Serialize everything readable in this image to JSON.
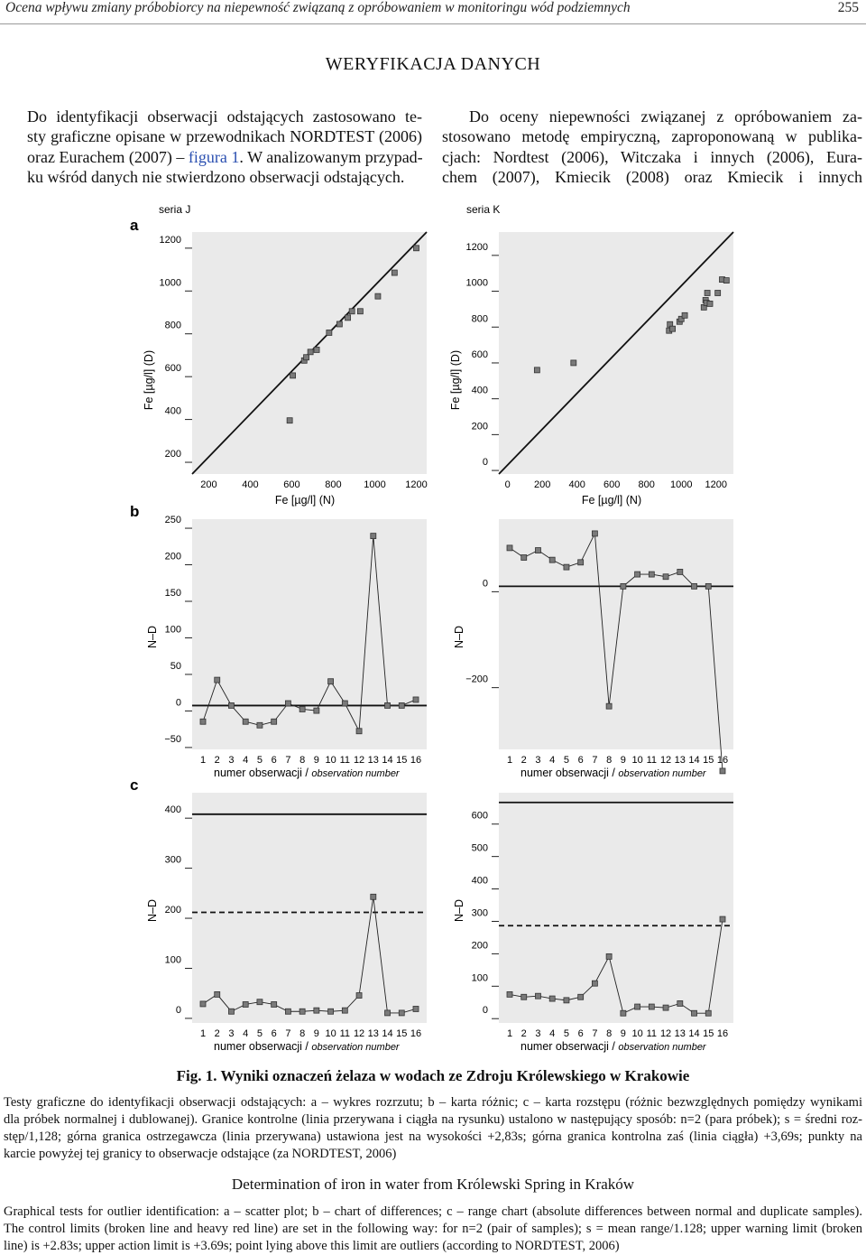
{
  "header": {
    "running_title": "Ocena wpływu zmiany próbobiorcy na niepewność związaną z opróbowaniem w monitoringu wód podziemnych",
    "page_number": "255"
  },
  "section_title": "WERYFIKACJA DANYCH",
  "left_para": {
    "lines": [
      "Do identyfikacji obserwacji odstających zastosowano te-",
      "sty graficzne opisane w przewodnikach NORDTEST (2006)",
      "oraz Eurachem (2007) – ",
      ". W analizowanym przypad-",
      "ku wśród danych nie stwierdzono obserwacji odstających."
    ],
    "link": "figura 1"
  },
  "right_para": {
    "lines": [
      "Do oceny niepewności związanej z opróbowaniem za-",
      "stosowano metodę empiryczną, zaproponowaną w publika-",
      "cjach: Nordtest (2006), Witczaka i innych (2006), Eura-",
      "chem (2007), Kmiecik (2008) oraz Kmiecik i innych"
    ]
  },
  "figure": {
    "panel_letters": [
      "a",
      "b",
      "c"
    ],
    "series_titles": [
      "seria J",
      "seria K"
    ],
    "scatter_xlabel": "Fe [µg/l] (N)",
    "scatter_ylabel": "Fe [µg/l] (D)",
    "obs_xlabel_pl": "numer obserwacji / ",
    "obs_xlabel_en": "observation number",
    "nd_ylabel": "N–D"
  },
  "chart_data": [
    {
      "id": "a-J",
      "type": "scatter",
      "title": "seria J",
      "xlabel": "Fe [µg/l] (N)",
      "ylabel": "Fe [µg/l] (D)",
      "xlim": [
        120,
        1250
      ],
      "ylim": [
        120,
        1250
      ],
      "x_ticks": [
        200,
        400,
        600,
        800,
        1000,
        1200
      ],
      "y_ticks": [
        200,
        400,
        600,
        800,
        1000,
        1200
      ],
      "reference_line": "y = x",
      "points": [
        [
          590,
          370
        ],
        [
          605,
          580
        ],
        [
          660,
          650
        ],
        [
          670,
          665
        ],
        [
          690,
          690
        ],
        [
          720,
          700
        ],
        [
          780,
          780
        ],
        [
          830,
          820
        ],
        [
          870,
          850
        ],
        [
          890,
          880
        ],
        [
          930,
          880
        ],
        [
          1015,
          950
        ],
        [
          1095,
          1060
        ],
        [
          1200,
          1175
        ]
      ]
    },
    {
      "id": "a-K",
      "type": "scatter",
      "title": "seria K",
      "xlabel": "Fe [µg/l] (N)",
      "ylabel": "Fe [µg/l] (D)",
      "xlim": [
        -50,
        1300
      ],
      "ylim": [
        -50,
        1300
      ],
      "x_ticks": [
        0,
        200,
        400,
        600,
        800,
        1000,
        1200
      ],
      "y_ticks": [
        0,
        200,
        400,
        600,
        800,
        1000,
        1200
      ],
      "reference_line": "y = x",
      "points": [
        [
          170,
          530
        ],
        [
          380,
          570
        ],
        [
          930,
          750
        ],
        [
          935,
          785
        ],
        [
          950,
          760
        ],
        [
          990,
          800
        ],
        [
          1000,
          815
        ],
        [
          1020,
          835
        ],
        [
          1130,
          880
        ],
        [
          1140,
          920
        ],
        [
          1150,
          960
        ],
        [
          1145,
          905
        ],
        [
          1165,
          900
        ],
        [
          1210,
          960
        ],
        [
          1235,
          1035
        ],
        [
          1260,
          1030
        ]
      ]
    },
    {
      "id": "b-J",
      "type": "line",
      "ylabel": "N–D",
      "xlabel": "numer obserwacji / observation number",
      "x": [
        1,
        2,
        3,
        4,
        5,
        6,
        7,
        8,
        9,
        10,
        11,
        12,
        13,
        14,
        15,
        16
      ],
      "ylim": [
        -60,
        255
      ],
      "y_ticks": [
        -50,
        0,
        50,
        100,
        150,
        200,
        250
      ],
      "values": [
        -22,
        35,
        0,
        -22,
        -27,
        -22,
        3,
        -5,
        -7,
        33,
        3,
        -35,
        232,
        0,
        0,
        8
      ],
      "center_line": 0
    },
    {
      "id": "b-K",
      "type": "line",
      "ylabel": "N–D",
      "xlabel": "numer obserwacji / observation number",
      "x": [
        1,
        2,
        3,
        4,
        5,
        6,
        7,
        8,
        9,
        10,
        11,
        12,
        13,
        14,
        15,
        16
      ],
      "ylim": [
        -340,
        140
      ],
      "y_ticks": [
        -200,
        0
      ],
      "values": [
        80,
        60,
        75,
        55,
        40,
        50,
        110,
        -250,
        0,
        25,
        25,
        20,
        30,
        0,
        0,
        -385
      ],
      "center_line": 0
    },
    {
      "id": "c-J",
      "type": "line",
      "ylabel": "N–D",
      "xlabel": "numer obserwacji / observation number",
      "x": [
        1,
        2,
        3,
        4,
        5,
        6,
        7,
        8,
        9,
        10,
        11,
        12,
        13,
        14,
        15,
        16
      ],
      "ylim": [
        -20,
        440
      ],
      "y_ticks": [
        0,
        100,
        200,
        300,
        400
      ],
      "values": [
        18,
        37,
        3,
        17,
        22,
        17,
        3,
        3,
        5,
        3,
        5,
        35,
        232,
        0,
        0,
        8
      ],
      "warning_limit": 201,
      "action_limit": 397
    },
    {
      "id": "c-K",
      "type": "line",
      "ylabel": "N–D",
      "xlabel": "numer obserwacji / observation number",
      "x": [
        1,
        2,
        3,
        4,
        5,
        6,
        7,
        8,
        9,
        10,
        11,
        12,
        13,
        14,
        15,
        16
      ],
      "ylim": [
        -30,
        680
      ],
      "y_ticks": [
        0,
        100,
        200,
        300,
        400,
        500,
        600
      ],
      "values": [
        58,
        50,
        53,
        45,
        40,
        50,
        92,
        175,
        0,
        20,
        20,
        17,
        30,
        0,
        0,
        290
      ],
      "warning_limit": 270,
      "action_limit": 650
    }
  ],
  "caption_pl": "Fig. 1. Wyniki oznaczeń żelaza w wodach ze Zdroju Królewskiego w Krakowie",
  "desc_pl": {
    "lines": [
      "Testy graficzne do identyfikacji obserwacji odstających: a – wykres rozrzutu; b – karta różnic; c – karta rozstępu (różnic bezwzględnych pomiędzy wynikami",
      "dla próbek normalnej i dublowanej). Granice kontrolne (linia przerywana i ciągła na rysunku) ustalono w następujący sposób: n=2 (para próbek); s = średni roz-",
      "stęp/1,128; górna granica ostrzegawcza (linia przerywana) ustawiona jest na wysokości +2,83s; górna granica kontrolna zaś (linia ciągła) +3,69s; punkty na",
      "karcie powyżej tej granicy to obserwacje odstające (za NORDTEST, 2006)"
    ]
  },
  "caption_en": "Determination of iron in water from Królewski Spring in Kraków",
  "desc_en": {
    "lines": [
      "Graphical tests for outlier identification: a – scatter plot; b – chart of differences; c – range chart (absolute differences between normal and duplicate samples).",
      "The control limits (broken line and heavy red line) are set in the following way: for n=2 (pair of samples); s = mean range/1.128; upper warning limit (broken",
      "line) is +2.83s; upper action limit is +3.69s; point lying above this limit are outliers (according to NORDTEST, 2006)"
    ]
  },
  "colors": {
    "plot_bg": "#eaeaea",
    "marker": "#7a7a7a",
    "line": "#111111"
  }
}
